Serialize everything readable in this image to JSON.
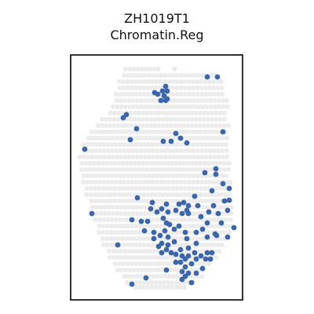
{
  "chart_data": {
    "type": "scatter",
    "title": "ZH1019T1",
    "subtitle": "Chromatin.Reg",
    "xlabel": "",
    "ylabel": "",
    "axes_ticks": "none",
    "grid": false,
    "colors": {
      "background_spot": "#ececec",
      "highlight_spot": "#3a66ae",
      "frame": "#000000"
    },
    "series": [
      {
        "role": "tissue spots (not expressed)",
        "points_note": "hexagonal spot grid covering the tissue section"
      },
      {
        "role": "highlighted spots",
        "points": [
          [
            211,
            110
          ],
          [
            207,
            116
          ],
          [
            213,
            116
          ],
          [
            201,
            120
          ],
          [
            209,
            122
          ],
          [
            213,
            126
          ],
          [
            205,
            128
          ],
          [
            211,
            128
          ],
          [
            197,
            118
          ],
          [
            277,
            98
          ],
          [
            264,
            98
          ],
          [
            161,
            146
          ],
          [
            157,
            150
          ],
          [
            174,
            164
          ],
          [
            224,
            170
          ],
          [
            230,
            176
          ],
          [
            218,
            180
          ],
          [
            208,
            180
          ],
          [
            238,
            182
          ],
          [
            284,
            168
          ],
          [
            166,
            178
          ],
          [
            261,
            220
          ],
          [
            275,
            222
          ],
          [
            108,
            190
          ],
          [
            275,
            215
          ],
          [
            175,
            252
          ],
          [
            194,
            258
          ],
          [
            212,
            260
          ],
          [
            228,
            260
          ],
          [
            234,
            258
          ],
          [
            240,
            262
          ],
          [
            248,
            250
          ],
          [
            252,
            262
          ],
          [
            232,
            272
          ],
          [
            240,
            272
          ],
          [
            224,
            268
          ],
          [
            238,
            268
          ],
          [
            192,
            266
          ],
          [
            200,
            270
          ],
          [
            214,
            270
          ],
          [
            208,
            278
          ],
          [
            206,
            266
          ],
          [
            216,
            286
          ],
          [
            210,
            294
          ],
          [
            212,
            284
          ],
          [
            222,
            292
          ],
          [
            228,
            288
          ],
          [
            204,
            300
          ],
          [
            214,
            302
          ],
          [
            196,
            296
          ],
          [
            184,
            294
          ],
          [
            196,
            304
          ],
          [
            206,
            310
          ],
          [
            214,
            312
          ],
          [
            222,
            308
          ],
          [
            212,
            318
          ],
          [
            218,
            322
          ],
          [
            206,
            322
          ],
          [
            202,
            314
          ],
          [
            236,
            296
          ],
          [
            238,
            304
          ],
          [
            250,
            296
          ],
          [
            258,
            292
          ],
          [
            264,
            284
          ],
          [
            256,
            276
          ],
          [
            266,
            270
          ],
          [
            272,
            262
          ],
          [
            264,
            302
          ],
          [
            274,
            298
          ],
          [
            250,
            310
          ],
          [
            240,
            316
          ],
          [
            230,
            318
          ],
          [
            224,
            324
          ],
          [
            232,
            326
          ],
          [
            240,
            326
          ],
          [
            248,
            322
          ],
          [
            256,
            326
          ],
          [
            264,
            322
          ],
          [
            268,
            330
          ],
          [
            244,
            336
          ],
          [
            236,
            340
          ],
          [
            232,
            346
          ],
          [
            240,
            348
          ],
          [
            236,
            352
          ],
          [
            230,
            334
          ],
          [
            224,
            334
          ],
          [
            250,
            348
          ],
          [
            258,
            342
          ],
          [
            262,
            330
          ],
          [
            270,
            322
          ],
          [
            180,
            282
          ],
          [
            168,
            280
          ],
          [
            188,
            282
          ],
          [
            150,
            312
          ],
          [
            212,
            344
          ],
          [
            186,
            354
          ],
          [
            168,
            362
          ],
          [
            117,
            272
          ],
          [
            270,
            243
          ],
          [
            284,
            234
          ],
          [
            292,
            240
          ],
          [
            292,
            255
          ],
          [
            286,
            256
          ],
          [
            278,
            272
          ],
          [
            290,
            268
          ],
          [
            282,
            284
          ],
          [
            276,
            300
          ],
          [
            298,
            290
          ],
          [
            290,
            302
          ],
          [
            232,
            356
          ],
          [
            244,
            360
          ],
          [
            250,
            330
          ],
          [
            236,
            330
          ]
        ]
      }
    ]
  }
}
